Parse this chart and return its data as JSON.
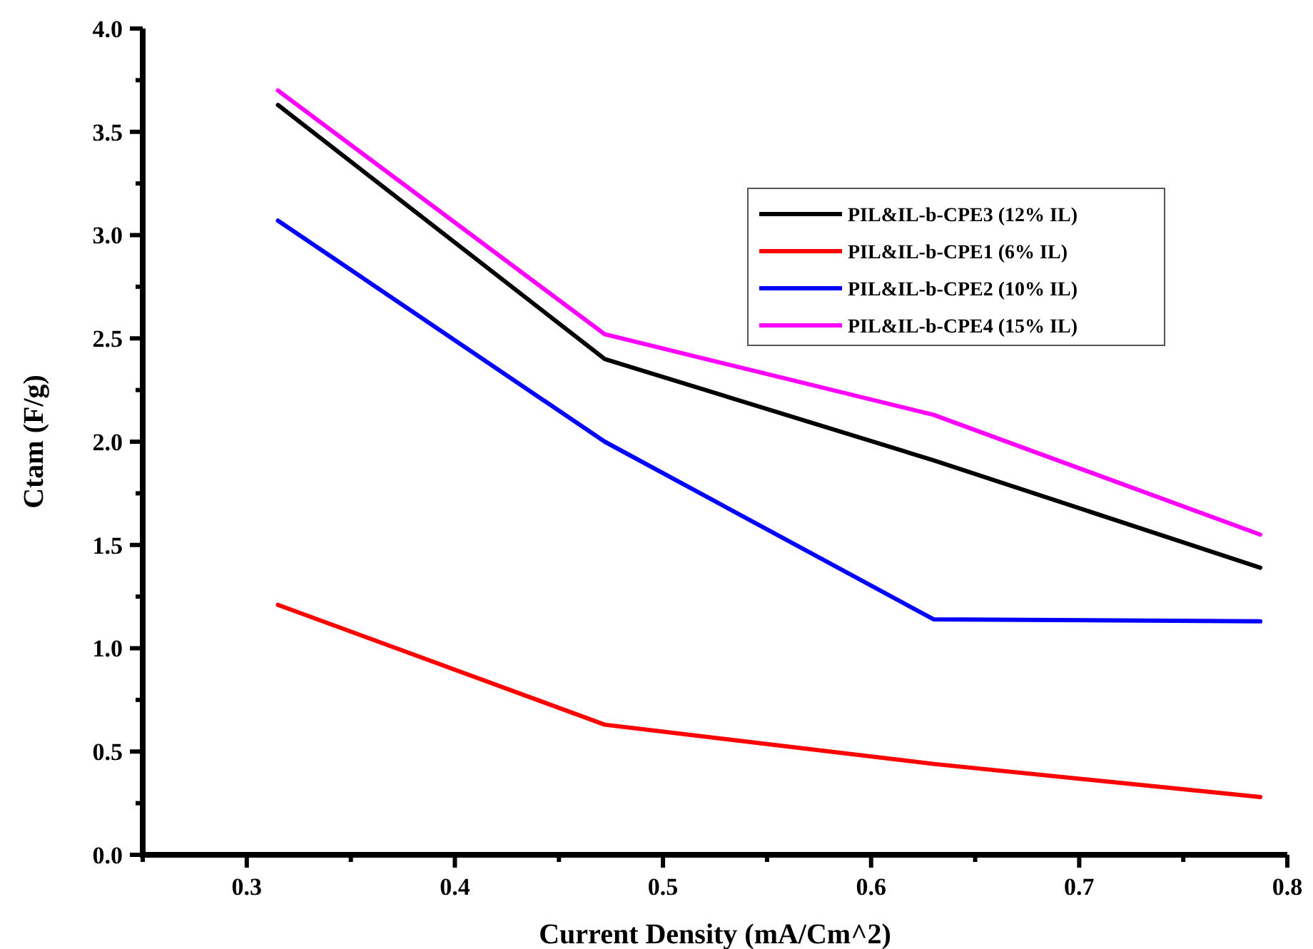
{
  "chart_data": {
    "type": "line",
    "xlabel": "Current Density (mA/Cm^2)",
    "ylabel": "Ctam (F/g)",
    "x": [
      0.315,
      0.472,
      0.63,
      0.787
    ],
    "series": [
      {
        "name": "PIL&IL-b-CPE3 (12% IL)",
        "color": "#000000",
        "values": [
          3.63,
          2.4,
          1.91,
          1.39
        ]
      },
      {
        "name": "PIL&IL-b-CPE1 (6% IL)",
        "color": "#ff0000",
        "values": [
          1.21,
          0.63,
          0.44,
          0.28
        ]
      },
      {
        "name": "PIL&IL-b-CPE2 (10% IL)",
        "color": "#0000ff",
        "values": [
          3.07,
          2.0,
          1.14,
          1.13
        ]
      },
      {
        "name": "PIL&IL-b-CPE4 (15% IL)",
        "color": "#ff00ff",
        "values": [
          3.7,
          2.52,
          2.13,
          1.55
        ]
      }
    ],
    "xlim": [
      0.25,
      0.8
    ],
    "xticks": [
      {
        "value": 0.25,
        "label": null
      },
      0.3,
      {
        "value": 0.35,
        "label": null
      },
      0.4,
      {
        "value": 0.45,
        "label": null
      },
      0.5,
      {
        "value": 0.55,
        "label": null
      },
      0.6,
      {
        "value": 0.65,
        "label": null
      },
      0.7,
      {
        "value": 0.75,
        "label": null
      },
      0.8
    ],
    "ylim": [
      0,
      4
    ],
    "yticks": [
      {
        "value": 0,
        "label": "0.0"
      },
      {
        "value": 0.25,
        "label": null
      },
      0.5,
      {
        "value": 0.75,
        "label": null
      },
      {
        "value": 1,
        "label": "1.0"
      },
      {
        "value": 1.25,
        "label": null
      },
      1.5,
      {
        "value": 1.75,
        "label": null
      },
      {
        "value": 2,
        "label": "2.0"
      },
      {
        "value": 2.25,
        "label": null
      },
      2.5,
      {
        "value": 2.75,
        "label": null
      },
      {
        "value": 3,
        "label": "3.0"
      },
      {
        "value": 3.25,
        "label": null
      },
      3.5,
      {
        "value": 3.75,
        "label": null
      },
      {
        "value": 4,
        "label": "4.0"
      }
    ],
    "grid": false,
    "legend": "top right",
    "marker": "none",
    "line_style": "solid"
  }
}
